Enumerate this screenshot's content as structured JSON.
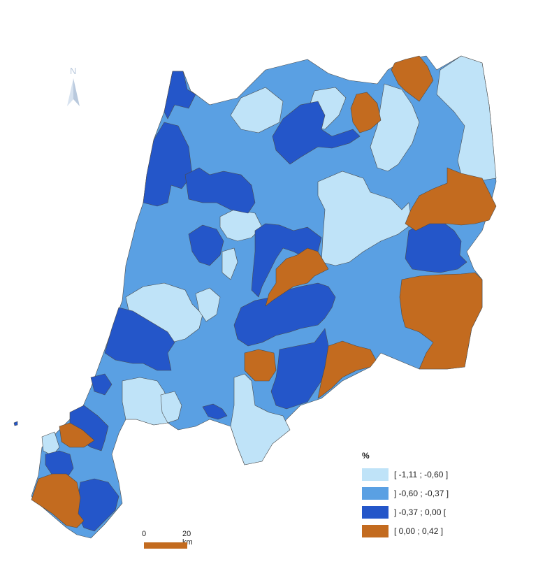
{
  "legend": {
    "title": "%",
    "classes": [
      {
        "label": "[ -1,11 ; -0,60 ]",
        "color": "#bfe3f8"
      },
      {
        "label": "] -0,60 ; -0,37 ]",
        "color": "#5aa0e3"
      },
      {
        "label": "] -0,37 ; 0,00 [",
        "color": "#2456c9"
      },
      {
        "label": "[ 0,00 ; 0,42 ]",
        "color": "#c36b1f"
      }
    ]
  },
  "scale": {
    "start": "0",
    "end": "20 km",
    "color": "#c36b1f"
  },
  "north_arrow": {
    "letter": "N",
    "icon": "north-arrow-icon",
    "color": "#b9c9dd"
  }
}
